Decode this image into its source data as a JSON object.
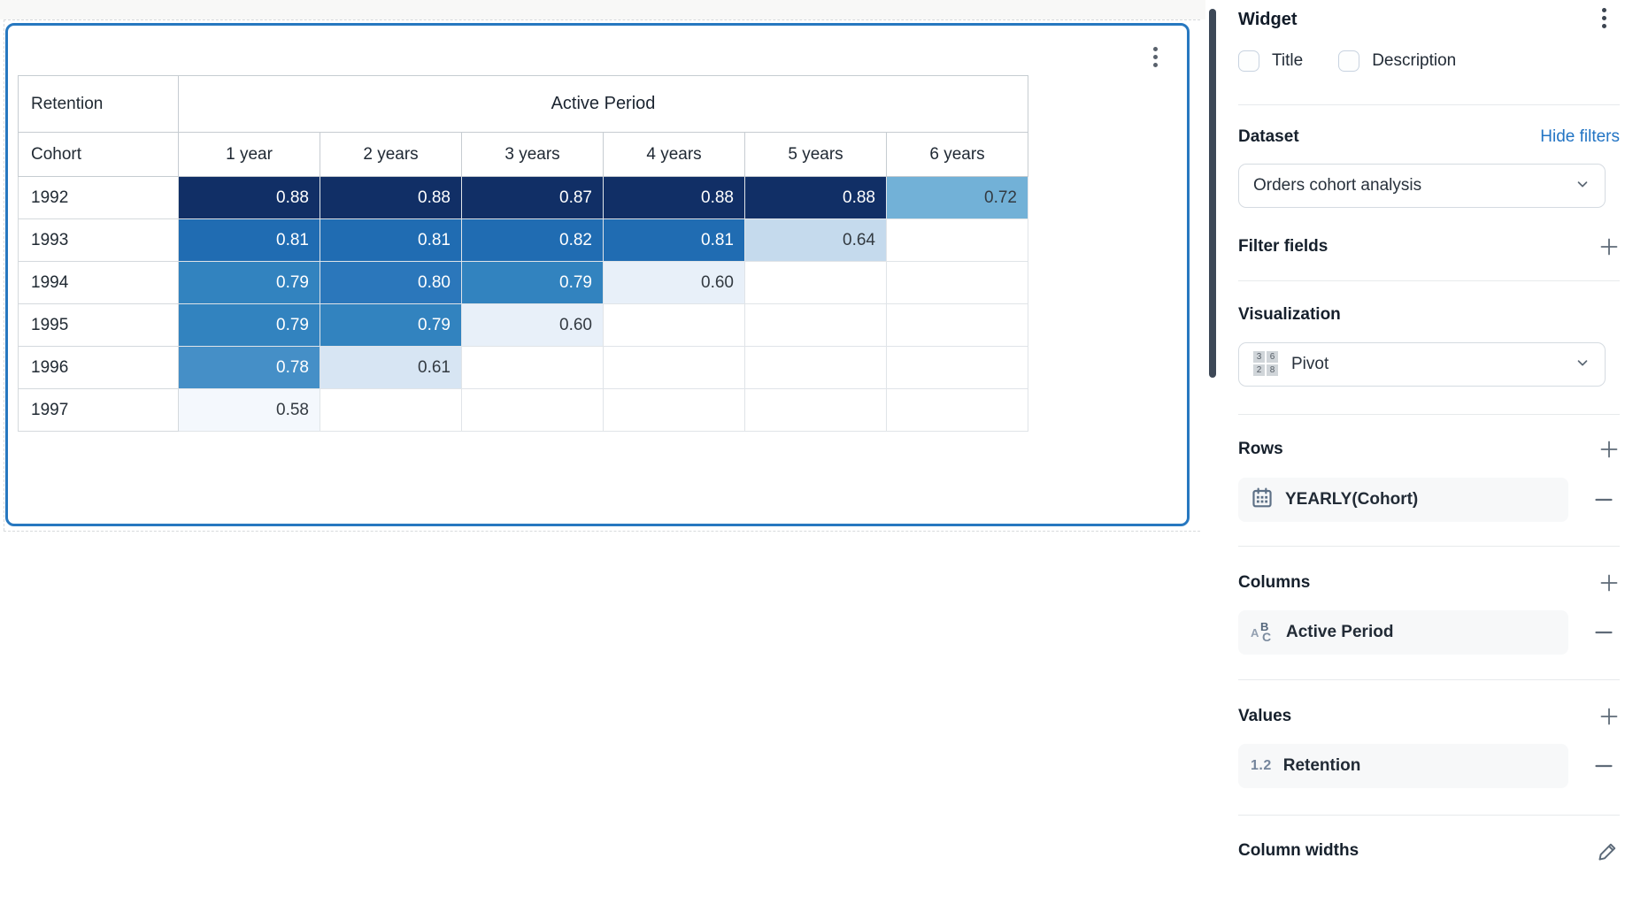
{
  "colors": {
    "accent_border": "#2778c0",
    "link_blue": "#2274c4",
    "scrollbar": "#3d4857",
    "chip_bg": "#f7f8f9",
    "cell_text_light": "#ffffff",
    "cell_text_dark": "#333a41"
  },
  "chart_data": {
    "type": "heatmap",
    "measure_label": "Retention",
    "column_group_label": "Active Period",
    "row_dimension_label": "Cohort",
    "columns": [
      "1 year",
      "2 years",
      "3 years",
      "4 years",
      "5 years",
      "6 years"
    ],
    "rows": [
      "1992",
      "1993",
      "1994",
      "1995",
      "1996",
      "1997"
    ],
    "values": [
      [
        "0.88",
        "0.88",
        "0.87",
        "0.88",
        "0.88",
        "0.72"
      ],
      [
        "0.81",
        "0.81",
        "0.82",
        "0.81",
        "0.64",
        null
      ],
      [
        "0.79",
        "0.80",
        "0.79",
        "0.60",
        null,
        null
      ],
      [
        "0.79",
        "0.79",
        "0.60",
        null,
        null,
        null
      ],
      [
        "0.78",
        "0.61",
        null,
        null,
        null,
        null
      ],
      [
        "0.58",
        null,
        null,
        null,
        null,
        null
      ]
    ],
    "palette": {
      "0.88": "#112f66",
      "0.87": "#112f66",
      "0.82": "#206cb2",
      "0.81": "#206cb2",
      "0.80": "#2b77bb",
      "0.79": "#3283bf",
      "0.78": "#458fc7",
      "0.72": "#72b1d7",
      "0.64": "#c5daed",
      "0.61": "#d7e5f3",
      "0.60": "#e8f0f9",
      "0.58": "#f4f8fd"
    },
    "light_text_min": 0.75,
    "legend_position": "none",
    "grid": true
  },
  "sidebar": {
    "title": "Widget",
    "checkboxes": {
      "title_label": "Title",
      "description_label": "Description"
    },
    "dataset": {
      "label": "Dataset",
      "action": "Hide filters",
      "selected": "Orders cohort analysis"
    },
    "filter_fields": {
      "label": "Filter fields"
    },
    "visualization": {
      "label": "Visualization",
      "selected": "Pivot",
      "pivot_icon_numbers": [
        "3",
        "6",
        "2",
        "8"
      ]
    },
    "rows_section": {
      "label": "Rows",
      "items": [
        {
          "label": "YEARLY(Cohort)",
          "icon": "calendar-icon"
        }
      ]
    },
    "columns_section": {
      "label": "Columns",
      "items": [
        {
          "label": "Active Period",
          "icon": "text-abc-icon",
          "icon_letters": [
            "A",
            "B",
            "C"
          ]
        }
      ]
    },
    "values_section": {
      "label": "Values",
      "items": [
        {
          "label": "Retention",
          "icon": "numeric-icon",
          "icon_text": "1.2"
        }
      ]
    },
    "column_widths": {
      "label": "Column widths"
    }
  }
}
